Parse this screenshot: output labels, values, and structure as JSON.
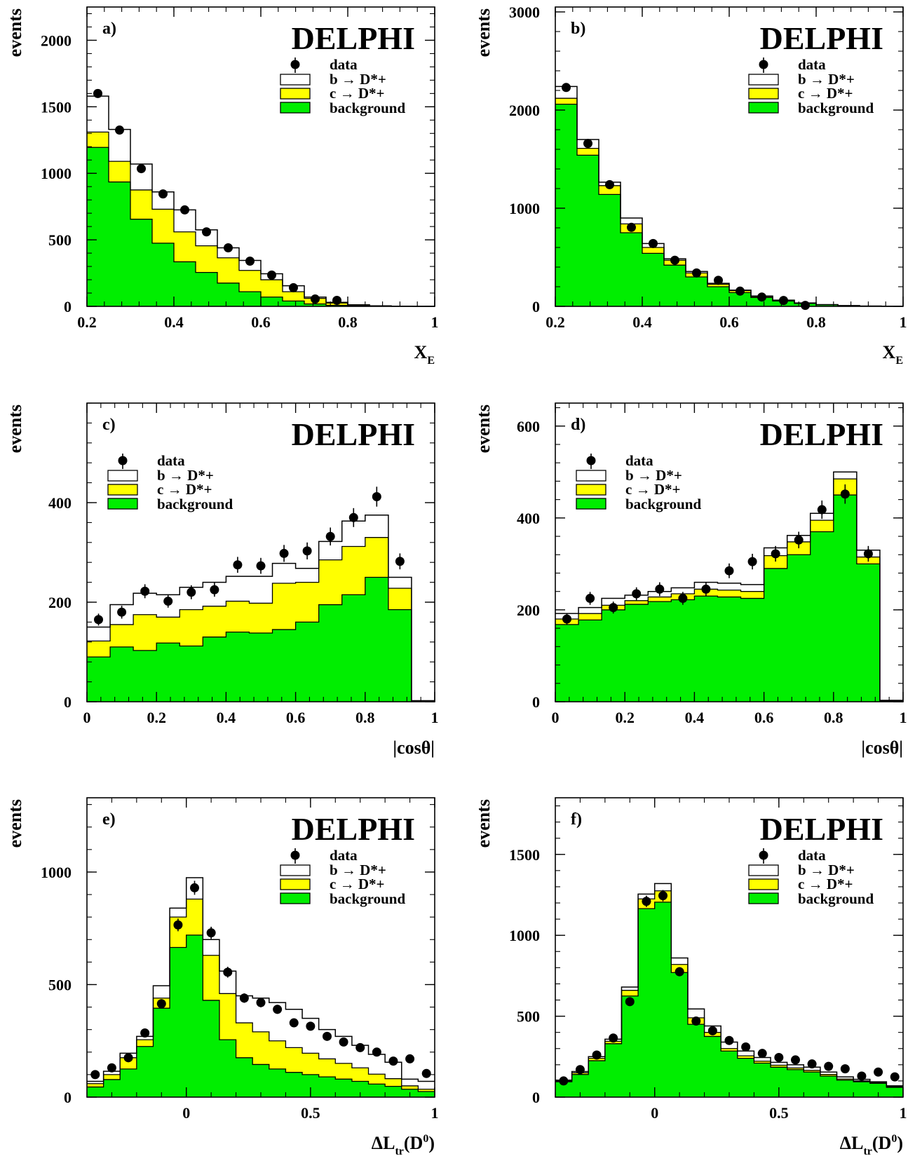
{
  "colors": {
    "signal_b": "#ffffff",
    "signal_c": "#ffff00",
    "background": "#00ee00",
    "line": "#000000"
  },
  "legend": [
    "data",
    "b → D*+",
    "c → D*+",
    "background"
  ],
  "chart_data": [
    {
      "type": "bar",
      "panel": "a)",
      "experiment": "DELPHI",
      "xlabel": "X",
      "xlabel_sub": "E",
      "ylabel": "events",
      "xlim": [
        0.2,
        1.0
      ],
      "ylim": [
        0,
        2250
      ],
      "xticks": [
        0.2,
        0.4,
        0.6,
        0.8,
        1
      ],
      "xtick_labels": [
        "0.2",
        "0.4",
        "0.6",
        "0.8",
        "1"
      ],
      "yticks": [
        0,
        500,
        1000,
        1500,
        2000
      ],
      "ytick_labels": [
        "0",
        "500",
        "1000",
        "1500",
        "2000"
      ],
      "bin_edges": [
        0.2,
        0.25,
        0.3,
        0.35,
        0.4,
        0.45,
        0.5,
        0.55,
        0.6,
        0.65,
        0.7,
        0.75,
        0.8,
        0.85,
        0.9,
        0.95,
        1.0
      ],
      "background": [
        1195,
        935,
        655,
        475,
        335,
        255,
        175,
        110,
        70,
        40,
        18,
        8,
        3,
        1,
        0,
        0
      ],
      "background_plus_c": [
        1310,
        1090,
        875,
        730,
        560,
        455,
        365,
        270,
        200,
        110,
        60,
        25,
        10,
        3,
        1,
        0
      ],
      "total": [
        1580,
        1330,
        1070,
        860,
        725,
        575,
        440,
        345,
        245,
        155,
        70,
        30,
        12,
        4,
        1,
        0
      ],
      "data_x": [
        0.225,
        0.275,
        0.325,
        0.375,
        0.425,
        0.475,
        0.525,
        0.575,
        0.625,
        0.675,
        0.725,
        0.775
      ],
      "data_y": [
        1600,
        1325,
        1035,
        845,
        725,
        560,
        440,
        340,
        235,
        140,
        55,
        45
      ],
      "data_err": [
        25,
        23,
        20,
        18,
        16,
        14,
        12,
        11,
        9,
        7,
        5,
        5
      ]
    },
    {
      "type": "bar",
      "panel": "b)",
      "experiment": "DELPHI",
      "xlabel": "X",
      "xlabel_sub": "E",
      "ylabel": "events",
      "xlim": [
        0.2,
        1.0
      ],
      "ylim": [
        0,
        3050
      ],
      "xticks": [
        0.2,
        0.4,
        0.6,
        0.8,
        1
      ],
      "xtick_labels": [
        "0.2",
        "0.4",
        "0.6",
        "0.8",
        "1"
      ],
      "yticks": [
        0,
        1000,
        2000,
        3000
      ],
      "ytick_labels": [
        "0",
        "1000",
        "2000",
        "3000"
      ],
      "bin_edges": [
        0.2,
        0.25,
        0.3,
        0.35,
        0.4,
        0.45,
        0.5,
        0.55,
        0.6,
        0.65,
        0.7,
        0.75,
        0.8,
        0.85,
        0.9,
        0.95,
        1.0
      ],
      "background": [
        2060,
        1540,
        1140,
        750,
        540,
        420,
        300,
        200,
        140,
        90,
        55,
        30,
        15,
        6,
        2,
        1
      ],
      "background_plus_c": [
        2120,
        1610,
        1230,
        840,
        600,
        470,
        340,
        225,
        160,
        100,
        60,
        33,
        17,
        7,
        3,
        1
      ],
      "total": [
        2240,
        1700,
        1265,
        900,
        640,
        485,
        355,
        235,
        165,
        105,
        63,
        35,
        18,
        8,
        3,
        1
      ],
      "data_x": [
        0.225,
        0.275,
        0.325,
        0.375,
        0.425,
        0.475,
        0.525,
        0.575,
        0.625,
        0.675,
        0.725,
        0.775
      ],
      "data_y": [
        2230,
        1660,
        1240,
        805,
        640,
        470,
        340,
        265,
        155,
        95,
        60,
        10
      ],
      "data_err": [
        30,
        25,
        22,
        18,
        16,
        14,
        12,
        10,
        8,
        7,
        6,
        3
      ]
    },
    {
      "type": "bar",
      "panel": "c)",
      "experiment": "DELPHI",
      "xlabel": "|cosθ|",
      "ylabel": "events",
      "xlim": [
        0,
        1.0
      ],
      "ylim": [
        0,
        600
      ],
      "xticks": [
        0,
        0.2,
        0.4,
        0.6,
        0.8,
        1
      ],
      "xtick_labels": [
        "0",
        "0.2",
        "0.4",
        "0.6",
        "0.8",
        "1"
      ],
      "yticks": [
        0,
        200,
        400
      ],
      "ytick_labels": [
        "0",
        "200",
        "400"
      ],
      "bin_edges": [
        0,
        0.0667,
        0.1333,
        0.2,
        0.2667,
        0.3333,
        0.4,
        0.4667,
        0.5333,
        0.6,
        0.6667,
        0.7333,
        0.8,
        0.8667,
        0.9333,
        1.0
      ],
      "background": [
        90,
        110,
        103,
        118,
        112,
        130,
        140,
        138,
        145,
        160,
        195,
        215,
        250,
        185,
        2
      ],
      "background_plus_c": [
        122,
        155,
        175,
        170,
        185,
        192,
        202,
        198,
        238,
        240,
        285,
        312,
        330,
        228,
        2
      ],
      "total": [
        150,
        195,
        218,
        215,
        230,
        240,
        252,
        252,
        278,
        268,
        322,
        363,
        375,
        250,
        2
      ],
      "data_x": [
        0.0333,
        0.1,
        0.1667,
        0.2333,
        0.3,
        0.3667,
        0.4333,
        0.5,
        0.5667,
        0.6333,
        0.7,
        0.7667,
        0.8333,
        0.9
      ],
      "data_y": [
        165,
        180,
        222,
        202,
        220,
        225,
        275,
        273,
        298,
        303,
        332,
        370,
        412,
        282
      ],
      "data_err": [
        12,
        13,
        14,
        13,
        14,
        14,
        16,
        16,
        17,
        17,
        18,
        19,
        20,
        16
      ]
    },
    {
      "type": "bar",
      "panel": "d)",
      "experiment": "DELPHI",
      "xlabel": "|cosθ|",
      "ylabel": "events",
      "xlim": [
        0,
        1.0
      ],
      "ylim": [
        0,
        650
      ],
      "xticks": [
        0,
        0.2,
        0.4,
        0.6,
        0.8,
        1
      ],
      "xtick_labels": [
        "0",
        "0.2",
        "0.4",
        "0.6",
        "0.8",
        "1"
      ],
      "yticks": [
        0,
        200,
        400,
        600
      ],
      "ytick_labels": [
        "0",
        "200",
        "400",
        "600"
      ],
      "bin_edges": [
        0,
        0.0667,
        0.1333,
        0.2,
        0.2667,
        0.3333,
        0.4,
        0.4667,
        0.5333,
        0.6,
        0.6667,
        0.7333,
        0.8,
        0.8667,
        0.9333,
        1.0
      ],
      "background": [
        168,
        178,
        200,
        212,
        218,
        222,
        230,
        228,
        225,
        290,
        320,
        370,
        450,
        300,
        2
      ],
      "background_plus_c": [
        180,
        192,
        210,
        220,
        228,
        235,
        245,
        243,
        240,
        318,
        348,
        395,
        485,
        315,
        2
      ],
      "total": [
        192,
        205,
        225,
        232,
        240,
        248,
        260,
        258,
        255,
        335,
        362,
        410,
        500,
        330,
        3
      ],
      "data_x": [
        0.0333,
        0.1,
        0.1667,
        0.2333,
        0.3,
        0.3667,
        0.4333,
        0.5,
        0.5667,
        0.6333,
        0.7,
        0.7667,
        0.8333,
        0.9
      ],
      "data_y": [
        180,
        225,
        205,
        235,
        245,
        225,
        245,
        285,
        305,
        322,
        352,
        418,
        452,
        322
      ],
      "data_err": [
        12,
        14,
        13,
        14,
        15,
        14,
        15,
        16,
        17,
        17,
        18,
        20,
        21,
        17
      ]
    },
    {
      "type": "bar",
      "panel": "e)",
      "experiment": "DELPHI",
      "xlabel": "ΔL",
      "xlabel_sub": "tr",
      "xlabel_tail": "(D",
      "xlabel_sup": "0",
      "xlabel_end": ")",
      "ylabel": "events",
      "xlim": [
        -0.4,
        1.0
      ],
      "ylim": [
        0,
        1330
      ],
      "xticks": [
        0,
        0.5,
        1
      ],
      "xtick_labels": [
        "0",
        "0.5",
        "1"
      ],
      "yticks": [
        0,
        500,
        1000
      ],
      "ytick_labels": [
        "0",
        "500",
        "1000"
      ],
      "bin_edges": [
        -0.4,
        -0.3333,
        -0.2667,
        -0.2,
        -0.1333,
        -0.0667,
        0.0,
        0.0667,
        0.1333,
        0.2,
        0.2667,
        0.3333,
        0.4,
        0.4667,
        0.5333,
        0.6,
        0.6667,
        0.7333,
        0.8,
        0.8667,
        0.9333,
        1.0
      ],
      "background": [
        45,
        78,
        125,
        225,
        395,
        665,
        720,
        430,
        255,
        175,
        145,
        125,
        110,
        100,
        90,
        80,
        70,
        58,
        48,
        35,
        25
      ],
      "background_plus_c": [
        60,
        100,
        175,
        255,
        440,
        800,
        880,
        630,
        460,
        330,
        290,
        250,
        220,
        195,
        170,
        150,
        130,
        102,
        82,
        50,
        35
      ],
      "total": [
        70,
        115,
        195,
        270,
        495,
        840,
        975,
        700,
        560,
        450,
        440,
        420,
        390,
        350,
        300,
        270,
        230,
        190,
        155,
        80,
        70
      ],
      "data_x": [
        -0.3667,
        -0.3,
        -0.2333,
        -0.1667,
        -0.1,
        -0.0333,
        0.0333,
        0.1,
        0.1667,
        0.2333,
        0.3,
        0.3667,
        0.4333,
        0.5,
        0.5667,
        0.6333,
        0.7,
        0.7667,
        0.8333,
        0.9,
        0.9667
      ],
      "data_y": [
        100,
        130,
        175,
        285,
        415,
        765,
        930,
        730,
        555,
        440,
        420,
        390,
        330,
        315,
        270,
        245,
        220,
        200,
        160,
        170,
        105
      ],
      "data_err": [
        10,
        12,
        14,
        17,
        20,
        28,
        31,
        27,
        24,
        21,
        21,
        20,
        18,
        18,
        16,
        16,
        15,
        14,
        13,
        13,
        10
      ]
    },
    {
      "type": "bar",
      "panel": "f)",
      "experiment": "DELPHI",
      "xlabel": "ΔL",
      "xlabel_sub": "tr",
      "xlabel_tail": "(D",
      "xlabel_sup": "0",
      "xlabel_end": ")",
      "ylabel": "events",
      "xlim": [
        -0.4,
        1.0
      ],
      "ylim": [
        0,
        1850
      ],
      "xticks": [
        0,
        0.5,
        1
      ],
      "xtick_labels": [
        "0",
        "0.5",
        "1"
      ],
      "yticks": [
        0,
        500,
        1000,
        1500
      ],
      "ytick_labels": [
        "0",
        "500",
        "1000",
        "1500"
      ],
      "bin_edges": [
        -0.4,
        -0.3333,
        -0.2667,
        -0.2,
        -0.1333,
        -0.0667,
        0.0,
        0.0667,
        0.1333,
        0.2,
        0.2667,
        0.3333,
        0.4,
        0.4667,
        0.5333,
        0.6,
        0.6667,
        0.7333,
        0.8,
        0.8667,
        0.9333,
        1.0
      ],
      "background": [
        95,
        140,
        225,
        330,
        625,
        1165,
        1205,
        770,
        450,
        375,
        285,
        240,
        210,
        185,
        170,
        155,
        130,
        105,
        95,
        85,
        60
      ],
      "background_plus_c": [
        100,
        150,
        240,
        345,
        660,
        1225,
        1275,
        820,
        490,
        400,
        300,
        255,
        222,
        197,
        180,
        165,
        140,
        112,
        100,
        90,
        65
      ],
      "total": [
        105,
        158,
        250,
        358,
        680,
        1255,
        1320,
        860,
        545,
        440,
        340,
        285,
        245,
        215,
        200,
        185,
        155,
        125,
        110,
        95,
        70
      ],
      "data_x": [
        -0.3667,
        -0.3,
        -0.2333,
        -0.1667,
        -0.1,
        -0.0333,
        0.0333,
        0.1,
        0.1667,
        0.2333,
        0.3,
        0.3667,
        0.4333,
        0.5,
        0.5667,
        0.6333,
        0.7,
        0.7667,
        0.8333,
        0.9,
        0.9667
      ],
      "data_y": [
        100,
        170,
        260,
        365,
        590,
        1210,
        1245,
        775,
        470,
        410,
        350,
        310,
        270,
        245,
        230,
        205,
        190,
        175,
        130,
        155,
        125
      ],
      "data_err": [
        10,
        13,
        16,
        19,
        24,
        35,
        35,
        28,
        22,
        20,
        19,
        18,
        16,
        16,
        15,
        14,
        14,
        13,
        11,
        12,
        11
      ]
    }
  ]
}
